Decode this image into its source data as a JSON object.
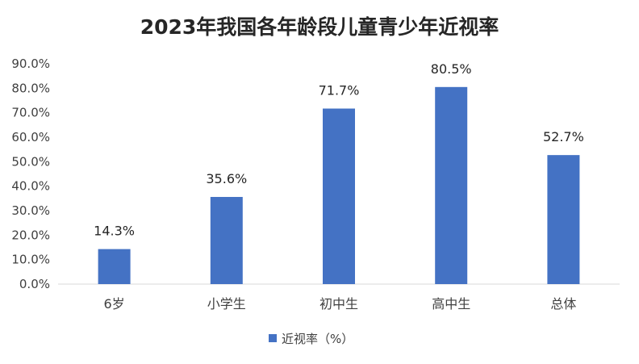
{
  "chart_data": {
    "type": "bar",
    "title": "2023年我国各年龄段儿童青少年近视率",
    "categories": [
      "6岁",
      "小学生",
      "初中生",
      "高中生",
      "总体"
    ],
    "series": [
      {
        "name": "近视率（%）",
        "values": [
          14.3,
          35.6,
          71.7,
          80.5,
          52.7
        ],
        "color": "#4472C4"
      }
    ],
    "data_labels": [
      "14.3%",
      "35.6%",
      "71.7%",
      "80.5%",
      "52.7%"
    ],
    "y_ticks": [
      "0.0%",
      "10.0%",
      "20.0%",
      "30.0%",
      "40.0%",
      "50.0%",
      "60.0%",
      "70.0%",
      "80.0%",
      "90.0%"
    ],
    "ylim": [
      0,
      90
    ],
    "xlabel": "",
    "ylabel": "",
    "grid": false,
    "legend_position": "bottom"
  }
}
